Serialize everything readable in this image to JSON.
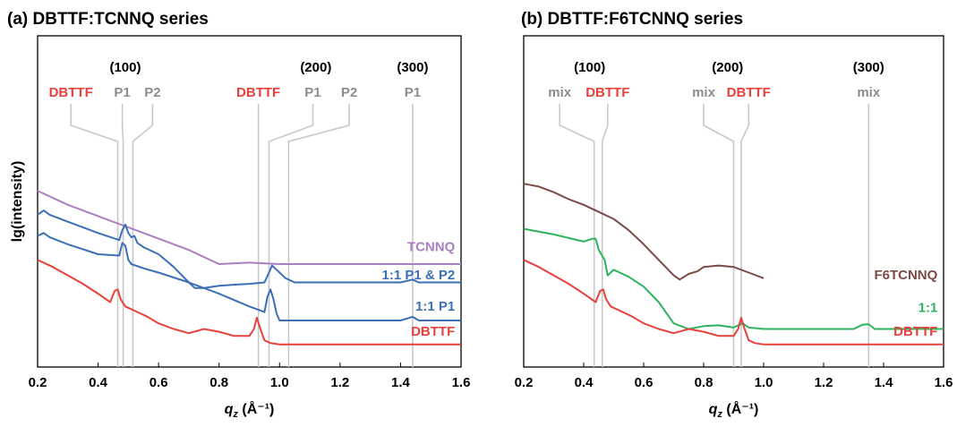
{
  "ylabel": "lg(intensity)",
  "colors": {
    "DBTTF": "#e8413c",
    "TCNNQ": "#a97fc2",
    "P1P2": "#3b6fb6",
    "P1": "#3b6fb6",
    "F6TCNNQ": "#7a4a45",
    "mix11": "#2db35d",
    "annotation_gray": "#8c8c8c",
    "guide": "#c8c8c8"
  },
  "chart_data": [
    {
      "type": "line",
      "title": "(a) DBTTF:TCNNQ series",
      "xlabel_main": "q",
      "xlabel_sub": "z",
      "xlabel_unit": " (Å⁻¹)",
      "xlim": [
        0.2,
        1.6
      ],
      "xticks": [
        "0.2",
        "0.4",
        "0.6",
        "0.8",
        "1.0",
        "1.2",
        "1.4",
        "1.6"
      ],
      "ylabel": "lg(intensity)",
      "order_labels": [
        {
          "text": "(100)",
          "x": 0.49
        },
        {
          "text": "(200)",
          "x": 1.12
        },
        {
          "text": "(300)",
          "x": 1.44
        }
      ],
      "peak_labels": [
        {
          "text": "DBTTF",
          "color_key": "DBTTF",
          "label_x": 0.31,
          "peak_x": 0.465
        },
        {
          "text": "P1",
          "color_key": "annotation_gray",
          "label_x": 0.48,
          "peak_x": 0.483
        },
        {
          "text": "P2",
          "color_key": "annotation_gray",
          "label_x": 0.58,
          "peak_x": 0.515
        },
        {
          "text": "DBTTF",
          "color_key": "DBTTF",
          "label_x": 0.93,
          "peak_x": 0.93
        },
        {
          "text": "P1",
          "color_key": "annotation_gray",
          "label_x": 1.11,
          "peak_x": 0.965
        },
        {
          "text": "P2",
          "color_key": "annotation_gray",
          "label_x": 1.23,
          "peak_x": 1.03
        },
        {
          "text": "P1",
          "color_key": "annotation_gray",
          "label_x": 1.44,
          "peak_x": 1.44
        }
      ],
      "series": [
        {
          "name": "TCNNQ",
          "color_key": "TCNNQ",
          "label_x": 1.58,
          "label_y": 3.05,
          "x": [
            0.2,
            0.3,
            0.4,
            0.5,
            0.6,
            0.7,
            0.75,
            0.8,
            0.9,
            1.0,
            1.2,
            1.4,
            1.6
          ],
          "y": [
            5.45,
            4.95,
            4.55,
            4.15,
            3.75,
            3.35,
            3.1,
            2.85,
            2.9,
            2.85,
            2.85,
            2.85,
            2.85
          ]
        },
        {
          "name": "1:1 P1 & P2",
          "color_key": "P1P2",
          "label_x": 1.58,
          "label_y": 2.05,
          "x": [
            0.2,
            0.22,
            0.24,
            0.3,
            0.4,
            0.47,
            0.48,
            0.49,
            0.5,
            0.51,
            0.52,
            0.53,
            0.55,
            0.6,
            0.65,
            0.7,
            0.72,
            0.75,
            0.8,
            0.85,
            0.9,
            0.95,
            0.965,
            0.975,
            0.99,
            1.0,
            1.02,
            1.05,
            1.1,
            1.2,
            1.3,
            1.4,
            1.44,
            1.46,
            1.5,
            1.6
          ],
          "y": [
            4.6,
            4.75,
            4.6,
            4.35,
            3.95,
            3.7,
            4.05,
            4.25,
            3.95,
            3.8,
            3.85,
            3.6,
            3.45,
            3.2,
            2.75,
            2.2,
            2.0,
            2.0,
            2.08,
            2.12,
            2.15,
            2.2,
            2.55,
            2.8,
            2.65,
            2.55,
            2.35,
            2.2,
            2.2,
            2.2,
            2.2,
            2.2,
            2.3,
            2.2,
            2.2,
            2.2
          ]
        },
        {
          "name": "1:1 P1",
          "color_key": "P1",
          "label_x": 1.58,
          "label_y": 0.95,
          "x": [
            0.2,
            0.22,
            0.24,
            0.3,
            0.4,
            0.47,
            0.48,
            0.49,
            0.5,
            0.51,
            0.55,
            0.6,
            0.7,
            0.8,
            0.9,
            0.95,
            0.96,
            0.97,
            0.98,
            0.99,
            1.0,
            1.1,
            1.2,
            1.3,
            1.4,
            1.44,
            1.46,
            1.5,
            1.6
          ],
          "y": [
            3.85,
            3.95,
            3.8,
            3.55,
            3.2,
            3.15,
            3.6,
            3.5,
            3.0,
            2.85,
            2.7,
            2.55,
            2.2,
            1.8,
            1.35,
            1.15,
            1.7,
            1.95,
            1.6,
            1.1,
            0.85,
            0.85,
            0.85,
            0.85,
            0.85,
            0.98,
            0.85,
            0.85,
            0.85
          ]
        },
        {
          "name": "DBTTF",
          "color_key": "DBTTF",
          "label_x": 1.58,
          "label_y": 0.05,
          "x": [
            0.2,
            0.25,
            0.3,
            0.35,
            0.4,
            0.44,
            0.455,
            0.465,
            0.475,
            0.49,
            0.52,
            0.56,
            0.6,
            0.65,
            0.7,
            0.75,
            0.8,
            0.85,
            0.9,
            0.915,
            0.925,
            0.935,
            0.95,
            0.97,
            1.0,
            1.2,
            1.4,
            1.6
          ],
          "y": [
            3.0,
            2.75,
            2.45,
            2.15,
            1.8,
            1.5,
            1.9,
            1.95,
            1.6,
            1.35,
            1.2,
            1.0,
            0.75,
            0.55,
            0.4,
            0.55,
            0.45,
            0.3,
            0.3,
            0.55,
            0.95,
            0.6,
            0.15,
            0.05,
            0.0,
            0.0,
            0.0,
            0.0
          ]
        }
      ]
    },
    {
      "type": "line",
      "title": "(b) DBTTF:F6TCNNQ series",
      "xlabel_main": "q",
      "xlabel_sub": "z",
      "xlabel_unit": " (Å⁻¹)",
      "xlim": [
        0.2,
        1.6
      ],
      "xticks": [
        "0.2",
        "0.4",
        "0.6",
        "0.8",
        "1.0",
        "1.2",
        "1.4",
        "1.6"
      ],
      "order_labels": [
        {
          "text": "(100)",
          "x": 0.42
        },
        {
          "text": "(200)",
          "x": 0.88
        },
        {
          "text": "(300)",
          "x": 1.35
        }
      ],
      "peak_labels": [
        {
          "text": "mix",
          "color_key": "annotation_gray",
          "label_x": 0.32,
          "peak_x": 0.435
        },
        {
          "text": "DBTTF",
          "color_key": "DBTTF",
          "label_x": 0.48,
          "peak_x": 0.462
        },
        {
          "text": "mix",
          "color_key": "annotation_gray",
          "label_x": 0.8,
          "peak_x": 0.9
        },
        {
          "text": "DBTTF",
          "color_key": "DBTTF",
          "label_x": 0.95,
          "peak_x": 0.925
        },
        {
          "text": "mix",
          "color_key": "annotation_gray",
          "label_x": 1.35,
          "peak_x": 1.35
        }
      ],
      "series": [
        {
          "name": "F6TCNNQ",
          "color_key": "F6TCNNQ",
          "label_x": 1.58,
          "label_y": 2.05,
          "x": [
            0.2,
            0.25,
            0.3,
            0.35,
            0.4,
            0.45,
            0.5,
            0.55,
            0.6,
            0.65,
            0.7,
            0.72,
            0.75,
            0.78,
            0.8,
            0.85,
            0.9,
            0.95,
            1.0
          ],
          "y": [
            5.7,
            5.6,
            5.4,
            5.15,
            4.95,
            4.7,
            4.45,
            4.05,
            3.55,
            3.0,
            2.45,
            2.3,
            2.5,
            2.6,
            2.75,
            2.8,
            2.75,
            2.55,
            2.35
          ]
        },
        {
          "name": "1:1",
          "color_key": "mix11",
          "label_x": 1.58,
          "label_y": 0.9,
          "x": [
            0.2,
            0.3,
            0.4,
            0.43,
            0.44,
            0.45,
            0.47,
            0.48,
            0.5,
            0.52,
            0.55,
            0.6,
            0.65,
            0.7,
            0.75,
            0.8,
            0.85,
            0.9,
            0.93,
            0.95,
            1.0,
            1.1,
            1.2,
            1.3,
            1.33,
            1.35,
            1.37,
            1.4,
            1.5,
            1.6
          ],
          "y": [
            4.1,
            3.9,
            3.65,
            3.75,
            3.75,
            3.35,
            3.0,
            2.45,
            2.65,
            2.55,
            2.4,
            2.05,
            1.5,
            0.75,
            0.55,
            0.65,
            0.68,
            0.6,
            0.75,
            0.6,
            0.55,
            0.55,
            0.55,
            0.55,
            0.7,
            0.72,
            0.55,
            0.55,
            0.55,
            0.55
          ]
        },
        {
          "name": "DBTTF",
          "color_key": "DBTTF",
          "label_x": 1.58,
          "label_y": 0.05,
          "x": [
            0.2,
            0.25,
            0.3,
            0.35,
            0.4,
            0.44,
            0.455,
            0.465,
            0.475,
            0.49,
            0.52,
            0.56,
            0.6,
            0.65,
            0.7,
            0.75,
            0.8,
            0.85,
            0.9,
            0.915,
            0.925,
            0.935,
            0.95,
            0.97,
            1.0,
            1.2,
            1.4,
            1.6
          ],
          "y": [
            3.0,
            2.75,
            2.45,
            2.15,
            1.8,
            1.5,
            1.9,
            1.95,
            1.6,
            1.35,
            1.2,
            1.0,
            0.75,
            0.55,
            0.4,
            0.55,
            0.45,
            0.3,
            0.3,
            0.55,
            0.95,
            0.6,
            0.15,
            0.05,
            0.0,
            0.0,
            0.0,
            0.0
          ]
        }
      ]
    }
  ]
}
